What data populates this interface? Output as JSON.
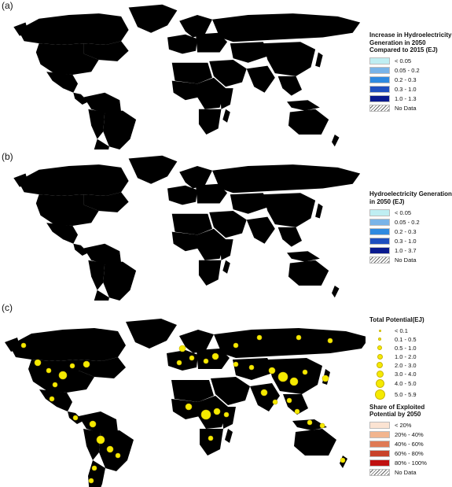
{
  "panels": {
    "a": {
      "label": "(a)",
      "legend_title": "Increase in Hydroelectricity Generation in 2050 Compared to 2015 (EJ)",
      "classes": [
        {
          "label": "< 0.05",
          "color": "#bfeef2"
        },
        {
          "label": "0.05 - 0.2",
          "color": "#79b4e8"
        },
        {
          "label": "0.2 - 0.3",
          "color": "#2f8ae0"
        },
        {
          "label": "0.3 - 1.0",
          "color": "#1f4fbf"
        },
        {
          "label": "1.0 - 1.3",
          "color": "#0a1a8f"
        }
      ],
      "no_data_label": "No Data"
    },
    "b": {
      "label": "(b)",
      "legend_title": "Hydroelectricity Generation in 2050 (EJ)",
      "classes": [
        {
          "label": "< 0.05",
          "color": "#bfeef2"
        },
        {
          "label": "0.05 - 0.2",
          "color": "#79b4e8"
        },
        {
          "label": "0.2 - 0.3",
          "color": "#2f8ae0"
        },
        {
          "label": "0.3 - 1.0",
          "color": "#1f4fbf"
        },
        {
          "label": "1.0 - 3.7",
          "color": "#0a1a8f"
        }
      ],
      "no_data_label": "No Data"
    },
    "c": {
      "label": "(c)",
      "potential_title": "Total Potential(EJ)",
      "potential_classes": [
        {
          "label": "< 0.1",
          "size": 3
        },
        {
          "label": "0.1 - 0.5",
          "size": 4
        },
        {
          "label": "0.5 - 1.0",
          "size": 6
        },
        {
          "label": "1.0 - 2.0",
          "size": 7
        },
        {
          "label": "2.0 - 3.0",
          "size": 8
        },
        {
          "label": "3.0 - 4.0",
          "size": 9
        },
        {
          "label": "4.0 - 5.0",
          "size": 11
        },
        {
          "label": "5.0 - 5.9",
          "size": 13
        }
      ],
      "share_title": "Share of Exploited Potential by 2050",
      "share_classes": [
        {
          "label": "< 20%",
          "color": "#fbe3d2"
        },
        {
          "label": "20% - 40%",
          "color": "#f2b58f"
        },
        {
          "label": "40% - 60%",
          "color": "#df7a55"
        },
        {
          "label": "60% - 80%",
          "color": "#c8432a"
        },
        {
          "label": "80% - 100%",
          "color": "#c00f0f"
        }
      ],
      "no_data_label": "No Data"
    }
  }
}
